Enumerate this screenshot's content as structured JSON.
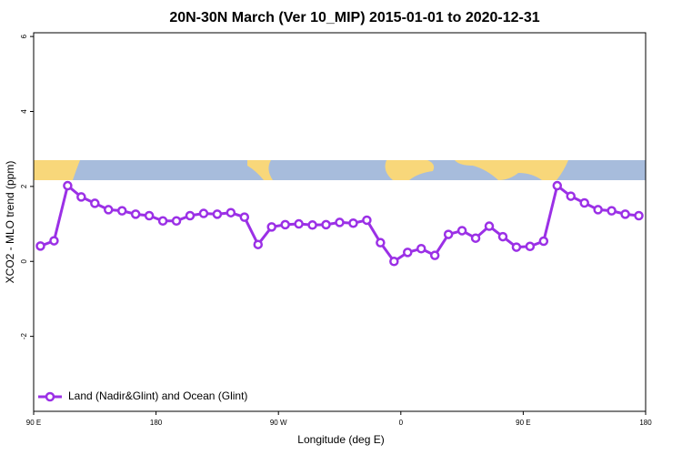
{
  "chart_data": {
    "type": "line",
    "title": "20N-30N March (Ver 10_MIP)   2015-01-01 to 2020-12-31",
    "xlabel": "Longitude (deg E)",
    "ylabel": "XCO2 - MLO trend (ppm)",
    "x": [
      95,
      105,
      115,
      125,
      135,
      145,
      155,
      165,
      175,
      185,
      195,
      205,
      215,
      225,
      235,
      245,
      255,
      265,
      275,
      285,
      295,
      305,
      315,
      325,
      335,
      345,
      355,
      365,
      375,
      385,
      395,
      405,
      415,
      425,
      435,
      445,
      455,
      465,
      475,
      485,
      495,
      505,
      515,
      525,
      535
    ],
    "series": [
      {
        "name": "Land (Nadir&Glint) and Ocean (Glint)",
        "color": "#9b30e6",
        "values": [
          0.41,
          0.55,
          2.02,
          1.72,
          1.55,
          1.38,
          1.35,
          1.26,
          1.22,
          1.08,
          1.08,
          1.22,
          1.28,
          1.26,
          1.3,
          1.18,
          0.45,
          0.92,
          0.98,
          1.0,
          0.97,
          0.98,
          1.04,
          1.02,
          1.1,
          0.5,
          0.0,
          0.24,
          0.34,
          0.16,
          0.72,
          0.82,
          0.62,
          0.94,
          0.66,
          0.38,
          0.4,
          0.54,
          2.02,
          1.74,
          1.56,
          1.38,
          1.35,
          1.26,
          1.22
        ]
      }
    ],
    "xlim": [
      90,
      540
    ],
    "xticks": [
      {
        "value": 90,
        "label": "90 E"
      },
      180,
      {
        "value": 270,
        "label": "90 W"
      },
      {
        "value": 360,
        "label": "0"
      },
      {
        "value": 450,
        "label": "90 E"
      },
      {
        "value": 540,
        "label": "180"
      }
    ],
    "ylim": [
      -4,
      6.1
    ],
    "yticks": [
      -2,
      0,
      2,
      4,
      6
    ],
    "legend": "bottom-left"
  }
}
